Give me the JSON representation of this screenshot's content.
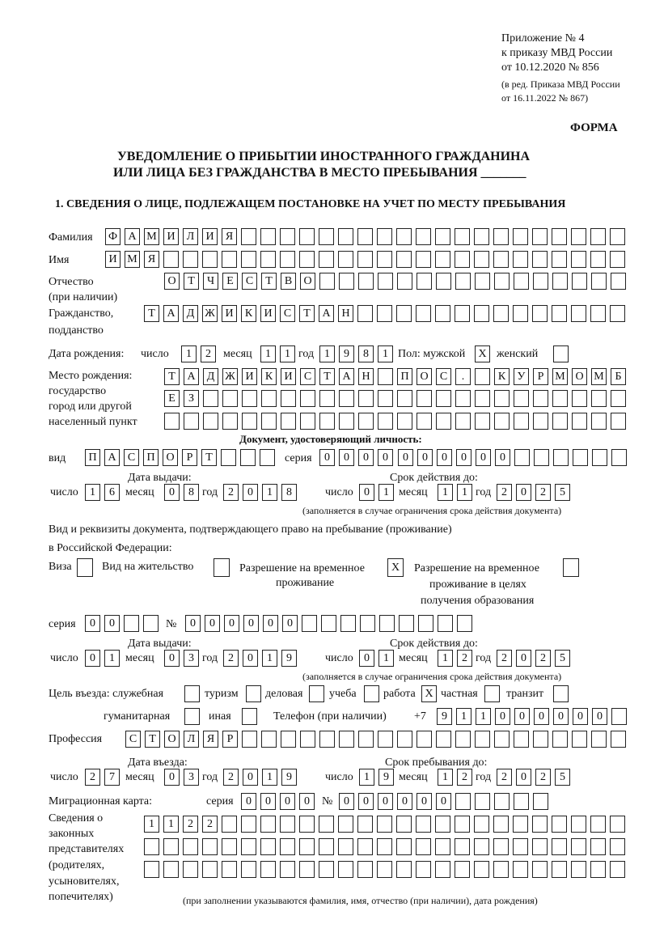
{
  "header": {
    "appendix": "Приложение № 4",
    "order": "к приказу МВД России",
    "order_date": "от 10.12.2020 № 856",
    "edit1": "(в ред. Приказа МВД России",
    "edit2": "от 16.11.2022 № 867)",
    "forma": "ФОРМА",
    "title1": "УВЕДОМЛЕНИЕ О ПРИБЫТИИ ИНОСТРАННОГО ГРАЖДАНИНА",
    "title2": "ИЛИ ЛИЦА БЕЗ ГРАЖДАНСТВА В МЕСТО ПРЕБЫВАНИЯ _______",
    "section1": "1. СВЕДЕНИЯ О ЛИЦЕ, ПОДЛЕЖАЩЕМ ПОСТАНОВКЕ НА УЧЕТ ПО МЕСТУ ПРЕБЫВАНИЯ"
  },
  "labels": {
    "surname": "Фамилия",
    "name": "Имя",
    "patronymic": "Отчество",
    "patronymic2": "(при наличии)",
    "citizenship": "Гражданство,",
    "citizenship2": "подданство",
    "dob": "Дата рождения:",
    "day": "число",
    "month": "месяц",
    "year": "год",
    "sex": "Пол: мужской",
    "female": "женский",
    "pob1": "Место рождения:",
    "pob2": "государство",
    "pob3": "город или другой",
    "pob4": "населенный пункт",
    "id_doc": "Документ, удостоверяющий личность:",
    "kind": "вид",
    "series": "серия",
    "number": "№",
    "issue_date": "Дата выдачи:",
    "valid_until": "Срок действия до:",
    "valid_note": "(заполняется в случае ограничения срока действия документа)",
    "right_doc1": "Вид и реквизиты документа, подтверждающего право на пребывание (проживание)",
    "right_doc2": "в Российской Федерации:",
    "visa": "Виза",
    "residence": "Вид на жительство",
    "temp1": "Разрешение на временное",
    "temp2": "проживание",
    "edu1": "Разрешение на временное",
    "edu2": "проживание в целях",
    "edu3": "получения образования",
    "purpose": "Цель въезда: служебная",
    "tourism": "туризм",
    "business": "деловая",
    "study": "учеба",
    "work": "работа",
    "private": "частная",
    "transit": "транзит",
    "humanitarian": "гуманитарная",
    "other": "иная",
    "phone": "Телефон (при наличии)",
    "phone_prefix": "+7",
    "profession": "Профессия",
    "entry_date": "Дата въезда:",
    "stay_until": "Срок пребывания до:",
    "migration_card": "Миграционная карта:",
    "rep1": "Сведения о",
    "rep2": "законных",
    "rep3": "представителях",
    "rep4": "(родителях,",
    "rep5": "усыновителях,",
    "rep6": "попечителях)",
    "rep_note": "(при заполнении указываются фамилия, имя, отчество (при наличии), дата рождения)"
  },
  "fields": {
    "surname": [
      "Ф",
      "А",
      "М",
      "И",
      "Л",
      "И",
      "Я",
      "",
      "",
      "",
      "",
      "",
      "",
      "",
      "",
      "",
      "",
      "",
      "",
      "",
      "",
      "",
      "",
      "",
      "",
      "",
      ""
    ],
    "name": [
      "И",
      "М",
      "Я",
      "",
      "",
      "",
      "",
      "",
      "",
      "",
      "",
      "",
      "",
      "",
      "",
      "",
      "",
      "",
      "",
      "",
      "",
      "",
      "",
      "",
      "",
      "",
      ""
    ],
    "patronymic": [
      "О",
      "Т",
      "Ч",
      "Е",
      "С",
      "Т",
      "В",
      "О",
      "",
      "",
      "",
      "",
      "",
      "",
      "",
      "",
      "",
      "",
      "",
      "",
      "",
      "",
      "",
      ""
    ],
    "citizenship": [
      "Т",
      "А",
      "Д",
      "Ж",
      "И",
      "К",
      "И",
      "С",
      "Т",
      "А",
      "Н",
      "",
      "",
      "",
      "",
      "",
      "",
      "",
      "",
      "",
      "",
      "",
      "",
      "",
      ""
    ],
    "dob_day": [
      "1",
      "2"
    ],
    "dob_month": [
      "1",
      "1"
    ],
    "dob_year": [
      "1",
      "9",
      "8",
      "1"
    ],
    "sex_male": [
      "X"
    ],
    "sex_female": [
      ""
    ],
    "pob1": [
      "Т",
      "А",
      "Д",
      "Ж",
      "И",
      "К",
      "И",
      "С",
      "Т",
      "А",
      "Н",
      "",
      "П",
      "О",
      "С",
      ".",
      "",
      "К",
      "У",
      "Р",
      "М",
      "О",
      "М",
      "Б"
    ],
    "pob2": [
      "Е",
      "З",
      "",
      "",
      "",
      "",
      "",
      "",
      "",
      "",
      "",
      "",
      "",
      "",
      "",
      "",
      "",
      "",
      "",
      "",
      "",
      "",
      "",
      ""
    ],
    "pob3": [
      "",
      "",
      "",
      "",
      "",
      "",
      "",
      "",
      "",
      "",
      "",
      "",
      "",
      "",
      "",
      "",
      "",
      "",
      "",
      "",
      "",
      "",
      "",
      ""
    ],
    "id_kind": [
      "П",
      "А",
      "С",
      "П",
      "О",
      "Р",
      "Т",
      "",
      "",
      ""
    ],
    "id_series": [
      "0",
      "0",
      "0",
      "0"
    ],
    "id_number": [
      "0",
      "0",
      "0",
      "0",
      "0",
      "0",
      "",
      "",
      "",
      "",
      "",
      ""
    ],
    "id_issue_day": [
      "1",
      "6"
    ],
    "id_issue_month": [
      "0",
      "8"
    ],
    "id_issue_year": [
      "2",
      "0",
      "1",
      "8"
    ],
    "id_valid_day": [
      "0",
      "1"
    ],
    "id_valid_month": [
      "1",
      "1"
    ],
    "id_valid_year": [
      "2",
      "0",
      "2",
      "5"
    ],
    "right_visa": [
      ""
    ],
    "right_residence": [
      ""
    ],
    "right_temp": [
      "X"
    ],
    "right_edu": [
      ""
    ],
    "right_series": [
      "0",
      "0",
      "",
      ""
    ],
    "right_number": [
      "0",
      "0",
      "0",
      "0",
      "0",
      "0",
      "",
      "",
      "",
      "",
      "",
      "",
      "",
      "",
      ""
    ],
    "right_issue_day": [
      "0",
      "1"
    ],
    "right_issue_month": [
      "0",
      "3"
    ],
    "right_issue_year": [
      "2",
      "0",
      "1",
      "9"
    ],
    "right_valid_day": [
      "0",
      "1"
    ],
    "right_valid_month": [
      "1",
      "2"
    ],
    "right_valid_year": [
      "2",
      "0",
      "2",
      "5"
    ],
    "p_service": [
      ""
    ],
    "p_tourism": [
      ""
    ],
    "p_business": [
      ""
    ],
    "p_study": [
      ""
    ],
    "p_work": [
      "X"
    ],
    "p_private": [
      ""
    ],
    "p_transit": [
      ""
    ],
    "p_humanitarian": [
      ""
    ],
    "p_other": [
      ""
    ],
    "phone": [
      "9",
      "1",
      "1",
      "0",
      "0",
      "0",
      "0",
      "0",
      "0",
      ""
    ],
    "profession": [
      "С",
      "Т",
      "О",
      "Л",
      "Я",
      "Р",
      "",
      "",
      "",
      "",
      "",
      "",
      "",
      "",
      "",
      "",
      "",
      "",
      "",
      "",
      "",
      "",
      "",
      "",
      "",
      ""
    ],
    "entry_day": [
      "2",
      "7"
    ],
    "entry_month": [
      "0",
      "3"
    ],
    "entry_year": [
      "2",
      "0",
      "1",
      "9"
    ],
    "stay_day": [
      "1",
      "9"
    ],
    "stay_month": [
      "1",
      "2"
    ],
    "stay_year": [
      "2",
      "0",
      "2",
      "5"
    ],
    "mc_series": [
      "0",
      "0",
      "0",
      "0"
    ],
    "mc_number": [
      "0",
      "0",
      "0",
      "0",
      "0",
      "0",
      "",
      "",
      "",
      "",
      ""
    ],
    "rep1": [
      "1",
      "1",
      "2",
      "2",
      "",
      "",
      "",
      "",
      "",
      "",
      "",
      "",
      "",
      "",
      "",
      "",
      "",
      "",
      "",
      "",
      "",
      "",
      "",
      "",
      ""
    ],
    "rep2": [
      "",
      "",
      "",
      "",
      "",
      "",
      "",
      "",
      "",
      "",
      "",
      "",
      "",
      "",
      "",
      "",
      "",
      "",
      "",
      "",
      "",
      "",
      "",
      "",
      ""
    ],
    "rep3": [
      "",
      "",
      "",
      "",
      "",
      "",
      "",
      "",
      "",
      "",
      "",
      "",
      "",
      "",
      "",
      "",
      "",
      "",
      "",
      "",
      "",
      "",
      "",
      "",
      ""
    ]
  }
}
